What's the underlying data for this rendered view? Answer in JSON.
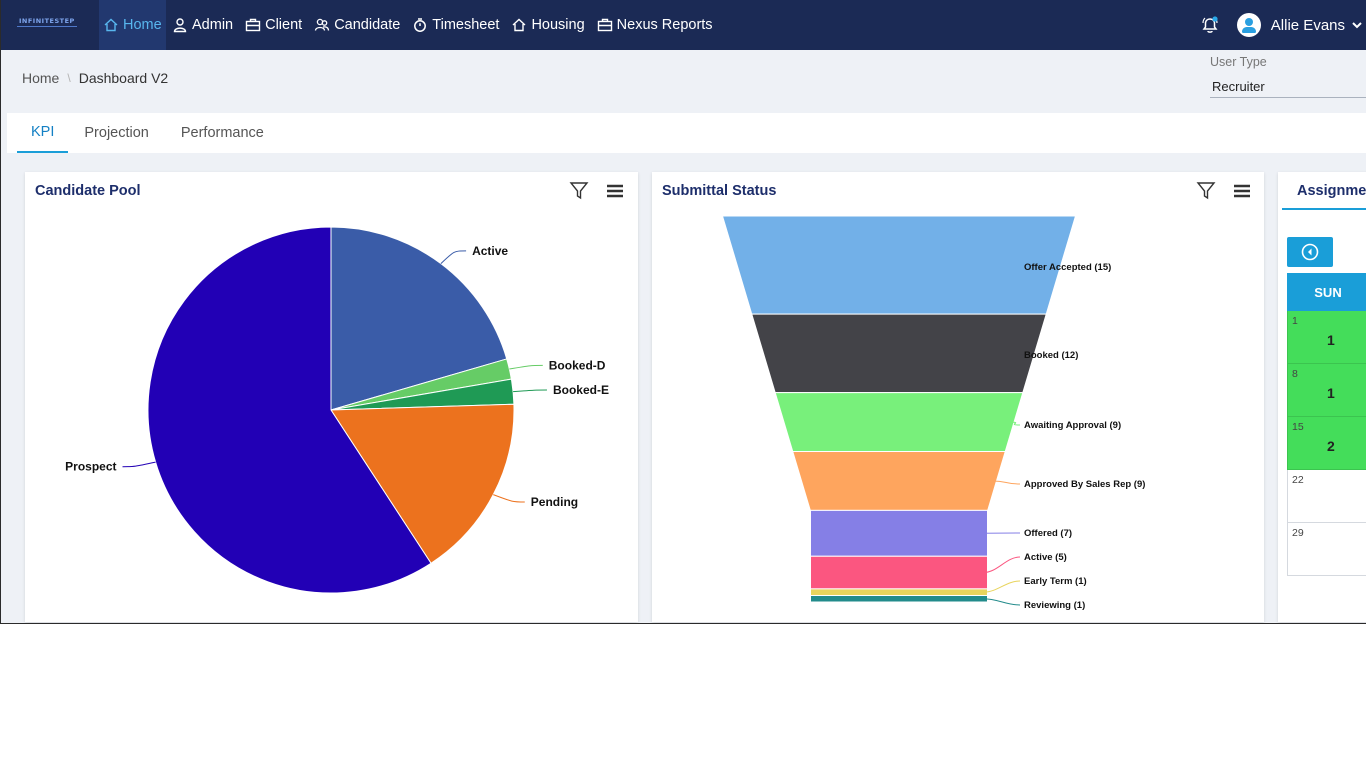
{
  "brand": {
    "logo_text": "INFINITESTEP"
  },
  "nav": {
    "items": [
      {
        "label": "Home",
        "icon": "home-icon"
      },
      {
        "label": "Admin",
        "icon": "user-icon"
      },
      {
        "label": "Client",
        "icon": "briefcase-icon"
      },
      {
        "label": "Candidate",
        "icon": "users-icon"
      },
      {
        "label": "Timesheet",
        "icon": "stopwatch-icon"
      },
      {
        "label": "Housing",
        "icon": "home-icon"
      },
      {
        "label": "Nexus Reports",
        "icon": "briefcase-icon"
      }
    ],
    "active": "Home",
    "user_name": "Allie Evans"
  },
  "breadcrumb": {
    "root": "Home",
    "separator": "\\",
    "current": "Dashboard V2"
  },
  "user_type": {
    "label": "User Type",
    "value": "Recruiter"
  },
  "tabs": [
    {
      "label": "KPI"
    },
    {
      "label": "Projection"
    },
    {
      "label": "Performance"
    }
  ],
  "panels": {
    "candidate_pool": {
      "title": "Candidate Pool"
    },
    "submittal_status": {
      "title": "Submittal Status"
    },
    "assignments": {
      "title": "Assignments"
    }
  },
  "chart_data": [
    {
      "type": "pie",
      "title": "Candidate Pool",
      "slices": [
        {
          "label": "Active",
          "value": 20.5,
          "color": "#3a5ca8"
        },
        {
          "label": "Booked-D",
          "value": 1.8,
          "color": "#66cc66"
        },
        {
          "label": "Booked-E",
          "value": 2.2,
          "color": "#1f9a55"
        },
        {
          "label": "Pending",
          "value": 16.3,
          "color": "#ec721e"
        },
        {
          "label": "Prospect",
          "value": 59.2,
          "color": "#2200b5"
        }
      ]
    },
    {
      "type": "funnel",
      "title": "Submittal Status",
      "stages": [
        {
          "label": "Offer Accepted (15)",
          "value": 15,
          "color": "#72b0e8"
        },
        {
          "label": "Booked (12)",
          "value": 12,
          "color": "#434348"
        },
        {
          "label": "Awaiting Approval (9)",
          "value": 9,
          "color": "#78f07b"
        },
        {
          "label": "Approved By Sales Rep (9)",
          "value": 9,
          "color": "#fea55e"
        },
        {
          "label": "Offered (7)",
          "value": 7,
          "color": "#857fe6"
        },
        {
          "label": "Active (5)",
          "value": 5,
          "color": "#fb5680"
        },
        {
          "label": "Early Term (1)",
          "value": 1,
          "color": "#e8d45d"
        },
        {
          "label": "Reviewing (1)",
          "value": 1,
          "color": "#228b8b"
        }
      ]
    }
  ],
  "calendar": {
    "day_header": "SUN",
    "cells": [
      {
        "date": "1",
        "count": "1",
        "highlight": true
      },
      {
        "date": "8",
        "count": "1",
        "highlight": true
      },
      {
        "date": "15",
        "count": "2",
        "highlight": true
      },
      {
        "date": "22",
        "count": "",
        "highlight": false
      },
      {
        "date": "29",
        "count": "",
        "highlight": false
      }
    ]
  },
  "colors": {
    "nav_bg": "#1b2a55",
    "accent": "#1a9ed8",
    "title": "#1d2e6b"
  }
}
